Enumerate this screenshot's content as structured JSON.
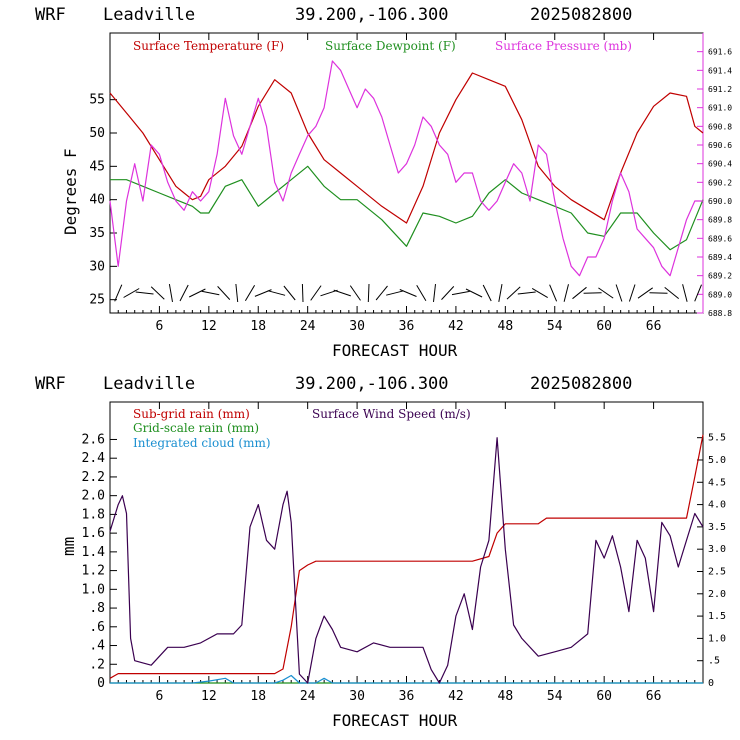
{
  "colors": {
    "temperature": "#c00000",
    "dewpoint": "#1f8f1f",
    "pressure": "#dd33dd",
    "subgrid_rain": "#c00000",
    "gridscale_rain": "#1f8f1f",
    "cloud": "#1a8fd0",
    "wind": "#3a0050",
    "barbs": "#000000"
  },
  "chart_data": [
    {
      "type": "line",
      "header": {
        "model": "WRF",
        "site": "Leadville",
        "coords": "39.200,-106.300",
        "date": "2025082800"
      },
      "xlabel": "FORECAST HOUR",
      "ylabel": "Degrees F",
      "xlim": [
        0,
        72
      ],
      "x_ticks": [
        "6",
        "12",
        "18",
        "24",
        "30",
        "36",
        "42",
        "48",
        "54",
        "60",
        "66"
      ],
      "ylim": [
        23,
        65
      ],
      "y_ticks": [
        "25",
        "30",
        "35",
        "40",
        "45",
        "50",
        "55"
      ],
      "y2lim": [
        688.8,
        691.8
      ],
      "y2_ticks": [
        "688.8",
        "689.0",
        "689.2",
        "689.4",
        "689.6",
        "689.8",
        "690.0",
        "690.2",
        "690.4",
        "690.6",
        "690.8",
        "691.0",
        "691.2",
        "691.4",
        "691.6"
      ],
      "legend": [
        "Surface Temperature (F)",
        "Surface Dewpoint (F)",
        "Surface Pressure (mb)"
      ],
      "series": [
        {
          "name": "Surface Temperature (F)",
          "axis": "left",
          "points": [
            [
              0,
              56
            ],
            [
              2,
              53
            ],
            [
              4,
              50
            ],
            [
              6,
              46
            ],
            [
              8,
              42
            ],
            [
              9,
              41
            ],
            [
              10,
              40
            ],
            [
              11,
              40.5
            ],
            [
              12,
              43
            ],
            [
              14,
              45
            ],
            [
              16,
              48
            ],
            [
              18,
              54
            ],
            [
              20,
              58
            ],
            [
              22,
              56
            ],
            [
              24,
              50
            ],
            [
              26,
              46
            ],
            [
              28,
              44
            ],
            [
              30,
              42
            ],
            [
              33,
              39
            ],
            [
              36,
              36.5
            ],
            [
              38,
              42
            ],
            [
              40,
              50
            ],
            [
              42,
              55
            ],
            [
              44,
              59
            ],
            [
              46,
              58
            ],
            [
              48,
              57
            ],
            [
              50,
              52
            ],
            [
              52,
              45
            ],
            [
              54,
              42
            ],
            [
              56,
              40
            ],
            [
              58,
              38.5
            ],
            [
              60,
              37
            ],
            [
              62,
              44
            ],
            [
              64,
              50
            ],
            [
              66,
              54
            ],
            [
              68,
              56
            ],
            [
              70,
              55.5
            ],
            [
              71,
              51
            ],
            [
              72,
              50
            ]
          ]
        },
        {
          "name": "Surface Dewpoint (F)",
          "axis": "left",
          "points": [
            [
              0,
              43
            ],
            [
              2,
              43
            ],
            [
              4,
              42
            ],
            [
              6,
              41
            ],
            [
              8,
              40
            ],
            [
              10,
              39
            ],
            [
              11,
              38
            ],
            [
              12,
              38
            ],
            [
              14,
              42
            ],
            [
              16,
              43
            ],
            [
              18,
              39
            ],
            [
              20,
              41
            ],
            [
              22,
              43
            ],
            [
              24,
              45
            ],
            [
              26,
              42
            ],
            [
              28,
              40
            ],
            [
              30,
              40
            ],
            [
              33,
              37
            ],
            [
              36,
              33
            ],
            [
              38,
              38
            ],
            [
              40,
              37.5
            ],
            [
              42,
              36.5
            ],
            [
              44,
              37.5
            ],
            [
              46,
              41
            ],
            [
              48,
              43
            ],
            [
              50,
              41
            ],
            [
              52,
              40
            ],
            [
              54,
              39
            ],
            [
              56,
              38
            ],
            [
              58,
              35
            ],
            [
              60,
              34.5
            ],
            [
              62,
              38
            ],
            [
              64,
              38
            ],
            [
              66,
              35
            ],
            [
              68,
              32.5
            ],
            [
              70,
              34
            ],
            [
              72,
              40
            ]
          ]
        },
        {
          "name": "Surface Pressure (mb)",
          "axis": "right",
          "points": [
            [
              0,
              690.0
            ],
            [
              1,
              689.3
            ],
            [
              2,
              690.0
            ],
            [
              3,
              690.4
            ],
            [
              4,
              690.0
            ],
            [
              5,
              690.6
            ],
            [
              6,
              690.5
            ],
            [
              7,
              690.2
            ],
            [
              8,
              690.0
            ],
            [
              9,
              689.9
            ],
            [
              10,
              690.1
            ],
            [
              11,
              690.0
            ],
            [
              12,
              690.1
            ],
            [
              13,
              690.5
            ],
            [
              14,
              691.1
            ],
            [
              15,
              690.7
            ],
            [
              16,
              690.5
            ],
            [
              17,
              690.8
            ],
            [
              18,
              691.1
            ],
            [
              19,
              690.8
            ],
            [
              20,
              690.2
            ],
            [
              21,
              690.0
            ],
            [
              22,
              690.3
            ],
            [
              23,
              690.5
            ],
            [
              24,
              690.7
            ],
            [
              25,
              690.8
            ],
            [
              26,
              691.0
            ],
            [
              27,
              691.5
            ],
            [
              28,
              691.4
            ],
            [
              29,
              691.2
            ],
            [
              30,
              691.0
            ],
            [
              31,
              691.2
            ],
            [
              32,
              691.1
            ],
            [
              33,
              690.9
            ],
            [
              34,
              690.6
            ],
            [
              35,
              690.3
            ],
            [
              36,
              690.4
            ],
            [
              37,
              690.6
            ],
            [
              38,
              690.9
            ],
            [
              39,
              690.8
            ],
            [
              40,
              690.6
            ],
            [
              41,
              690.5
            ],
            [
              42,
              690.2
            ],
            [
              43,
              690.3
            ],
            [
              44,
              690.3
            ],
            [
              45,
              690.0
            ],
            [
              46,
              689.9
            ],
            [
              47,
              690.0
            ],
            [
              48,
              690.2
            ],
            [
              49,
              690.4
            ],
            [
              50,
              690.3
            ],
            [
              51,
              690.0
            ],
            [
              52,
              690.6
            ],
            [
              53,
              690.5
            ],
            [
              54,
              690.0
            ],
            [
              55,
              689.6
            ],
            [
              56,
              689.3
            ],
            [
              57,
              689.2
            ],
            [
              58,
              689.4
            ],
            [
              59,
              689.4
            ],
            [
              60,
              689.6
            ],
            [
              61,
              690.0
            ],
            [
              62,
              690.3
            ],
            [
              63,
              690.1
            ],
            [
              64,
              689.7
            ],
            [
              65,
              689.6
            ],
            [
              66,
              689.5
            ],
            [
              67,
              689.3
            ],
            [
              68,
              689.2
            ],
            [
              69,
              689.5
            ],
            [
              70,
              689.8
            ],
            [
              71,
              690.0
            ],
            [
              72,
              690.0
            ]
          ]
        }
      ]
    },
    {
      "type": "line",
      "header": {
        "model": "WRF",
        "site": "Leadville",
        "coords": "39.200,-106.300",
        "date": "2025082800"
      },
      "xlabel": "FORECAST HOUR",
      "ylabel": "mm",
      "xlim": [
        0,
        72
      ],
      "x_ticks": [
        "6",
        "12",
        "18",
        "24",
        "30",
        "36",
        "42",
        "48",
        "54",
        "60",
        "66"
      ],
      "ylim": [
        0,
        3.0
      ],
      "y_ticks": [
        "0",
        ".2",
        ".4",
        ".6",
        ".8",
        "1.0",
        "1.2",
        "1.4",
        "1.6",
        "1.8",
        "2.0",
        "2.2",
        "2.4",
        "2.6"
      ],
      "y2lim": [
        0,
        6.3
      ],
      "y2_ticks": [
        "0",
        ".5",
        "1.0",
        "1.5",
        "2.0",
        "2.5",
        "3.0",
        "3.5",
        "4.0",
        "4.5",
        "5.0",
        "5.5"
      ],
      "legend": [
        "Sub-grid rain (mm)",
        "Grid-scale rain (mm)",
        "Integrated cloud (mm)",
        "Surface Wind Speed (m/s)"
      ],
      "series": [
        {
          "name": "Sub-grid rain (mm)",
          "axis": "left",
          "points": [
            [
              0,
              0.05
            ],
            [
              1,
              0.1
            ],
            [
              2,
              0.1
            ],
            [
              20,
              0.1
            ],
            [
              21,
              0.15
            ],
            [
              22,
              0.6
            ],
            [
              23,
              1.2
            ],
            [
              24,
              1.26
            ],
            [
              25,
              1.3
            ],
            [
              44,
              1.3
            ],
            [
              46,
              1.35
            ],
            [
              47,
              1.6
            ],
            [
              48,
              1.7
            ],
            [
              52,
              1.7
            ],
            [
              53,
              1.76
            ],
            [
              70,
              1.76
            ],
            [
              71,
              2.2
            ],
            [
              72,
              2.65
            ]
          ]
        },
        {
          "name": "Grid-scale rain (mm)",
          "axis": "left",
          "points": [
            [
              0,
              0
            ],
            [
              72,
              0
            ]
          ]
        },
        {
          "name": "Integrated cloud (mm)",
          "axis": "left",
          "points": [
            [
              0,
              0
            ],
            [
              10,
              0
            ],
            [
              12,
              0.02
            ],
            [
              14,
              0.05
            ],
            [
              15,
              0
            ],
            [
              20,
              0
            ],
            [
              21,
              0.03
            ],
            [
              22,
              0.08
            ],
            [
              23,
              0
            ],
            [
              25,
              0
            ],
            [
              26,
              0.05
            ],
            [
              27,
              0
            ],
            [
              72,
              0
            ]
          ]
        },
        {
          "name": "Surface Wind Speed (m/s)",
          "axis": "right",
          "points": [
            [
              0,
              3.4
            ],
            [
              1,
              4.0
            ],
            [
              1.5,
              4.2
            ],
            [
              2,
              3.8
            ],
            [
              2.5,
              1.0
            ],
            [
              3,
              0.5
            ],
            [
              5,
              0.4
            ],
            [
              7,
              0.8
            ],
            [
              9,
              0.8
            ],
            [
              11,
              0.9
            ],
            [
              13,
              1.1
            ],
            [
              15,
              1.1
            ],
            [
              16,
              1.3
            ],
            [
              17,
              3.5
            ],
            [
              18,
              4.0
            ],
            [
              19,
              3.2
            ],
            [
              20,
              3.0
            ],
            [
              21,
              4.0
            ],
            [
              21.5,
              4.3
            ],
            [
              22,
              3.6
            ],
            [
              23,
              0.2
            ],
            [
              24,
              0.0
            ],
            [
              25,
              1.0
            ],
            [
              26,
              1.5
            ],
            [
              27,
              1.2
            ],
            [
              28,
              0.8
            ],
            [
              30,
              0.7
            ],
            [
              32,
              0.9
            ],
            [
              34,
              0.8
            ],
            [
              36,
              0.8
            ],
            [
              38,
              0.8
            ],
            [
              39,
              0.3
            ],
            [
              40,
              0.0
            ],
            [
              41,
              0.4
            ],
            [
              42,
              1.5
            ],
            [
              43,
              2.0
            ],
            [
              44,
              1.2
            ],
            [
              45,
              2.6
            ],
            [
              46,
              3.2
            ],
            [
              47,
              5.5
            ],
            [
              48,
              3.0
            ],
            [
              49,
              1.3
            ],
            [
              50,
              1.0
            ],
            [
              52,
              0.6
            ],
            [
              54,
              0.7
            ],
            [
              56,
              0.8
            ],
            [
              58,
              1.1
            ],
            [
              59,
              3.2
            ],
            [
              60,
              2.8
            ],
            [
              61,
              3.3
            ],
            [
              62,
              2.6
            ],
            [
              63,
              1.6
            ],
            [
              64,
              3.2
            ],
            [
              65,
              2.8
            ],
            [
              66,
              1.6
            ],
            [
              67,
              3.6
            ],
            [
              68,
              3.3
            ],
            [
              69,
              2.6
            ],
            [
              70,
              3.2
            ],
            [
              71,
              3.8
            ],
            [
              72,
              3.5
            ]
          ]
        }
      ]
    }
  ]
}
